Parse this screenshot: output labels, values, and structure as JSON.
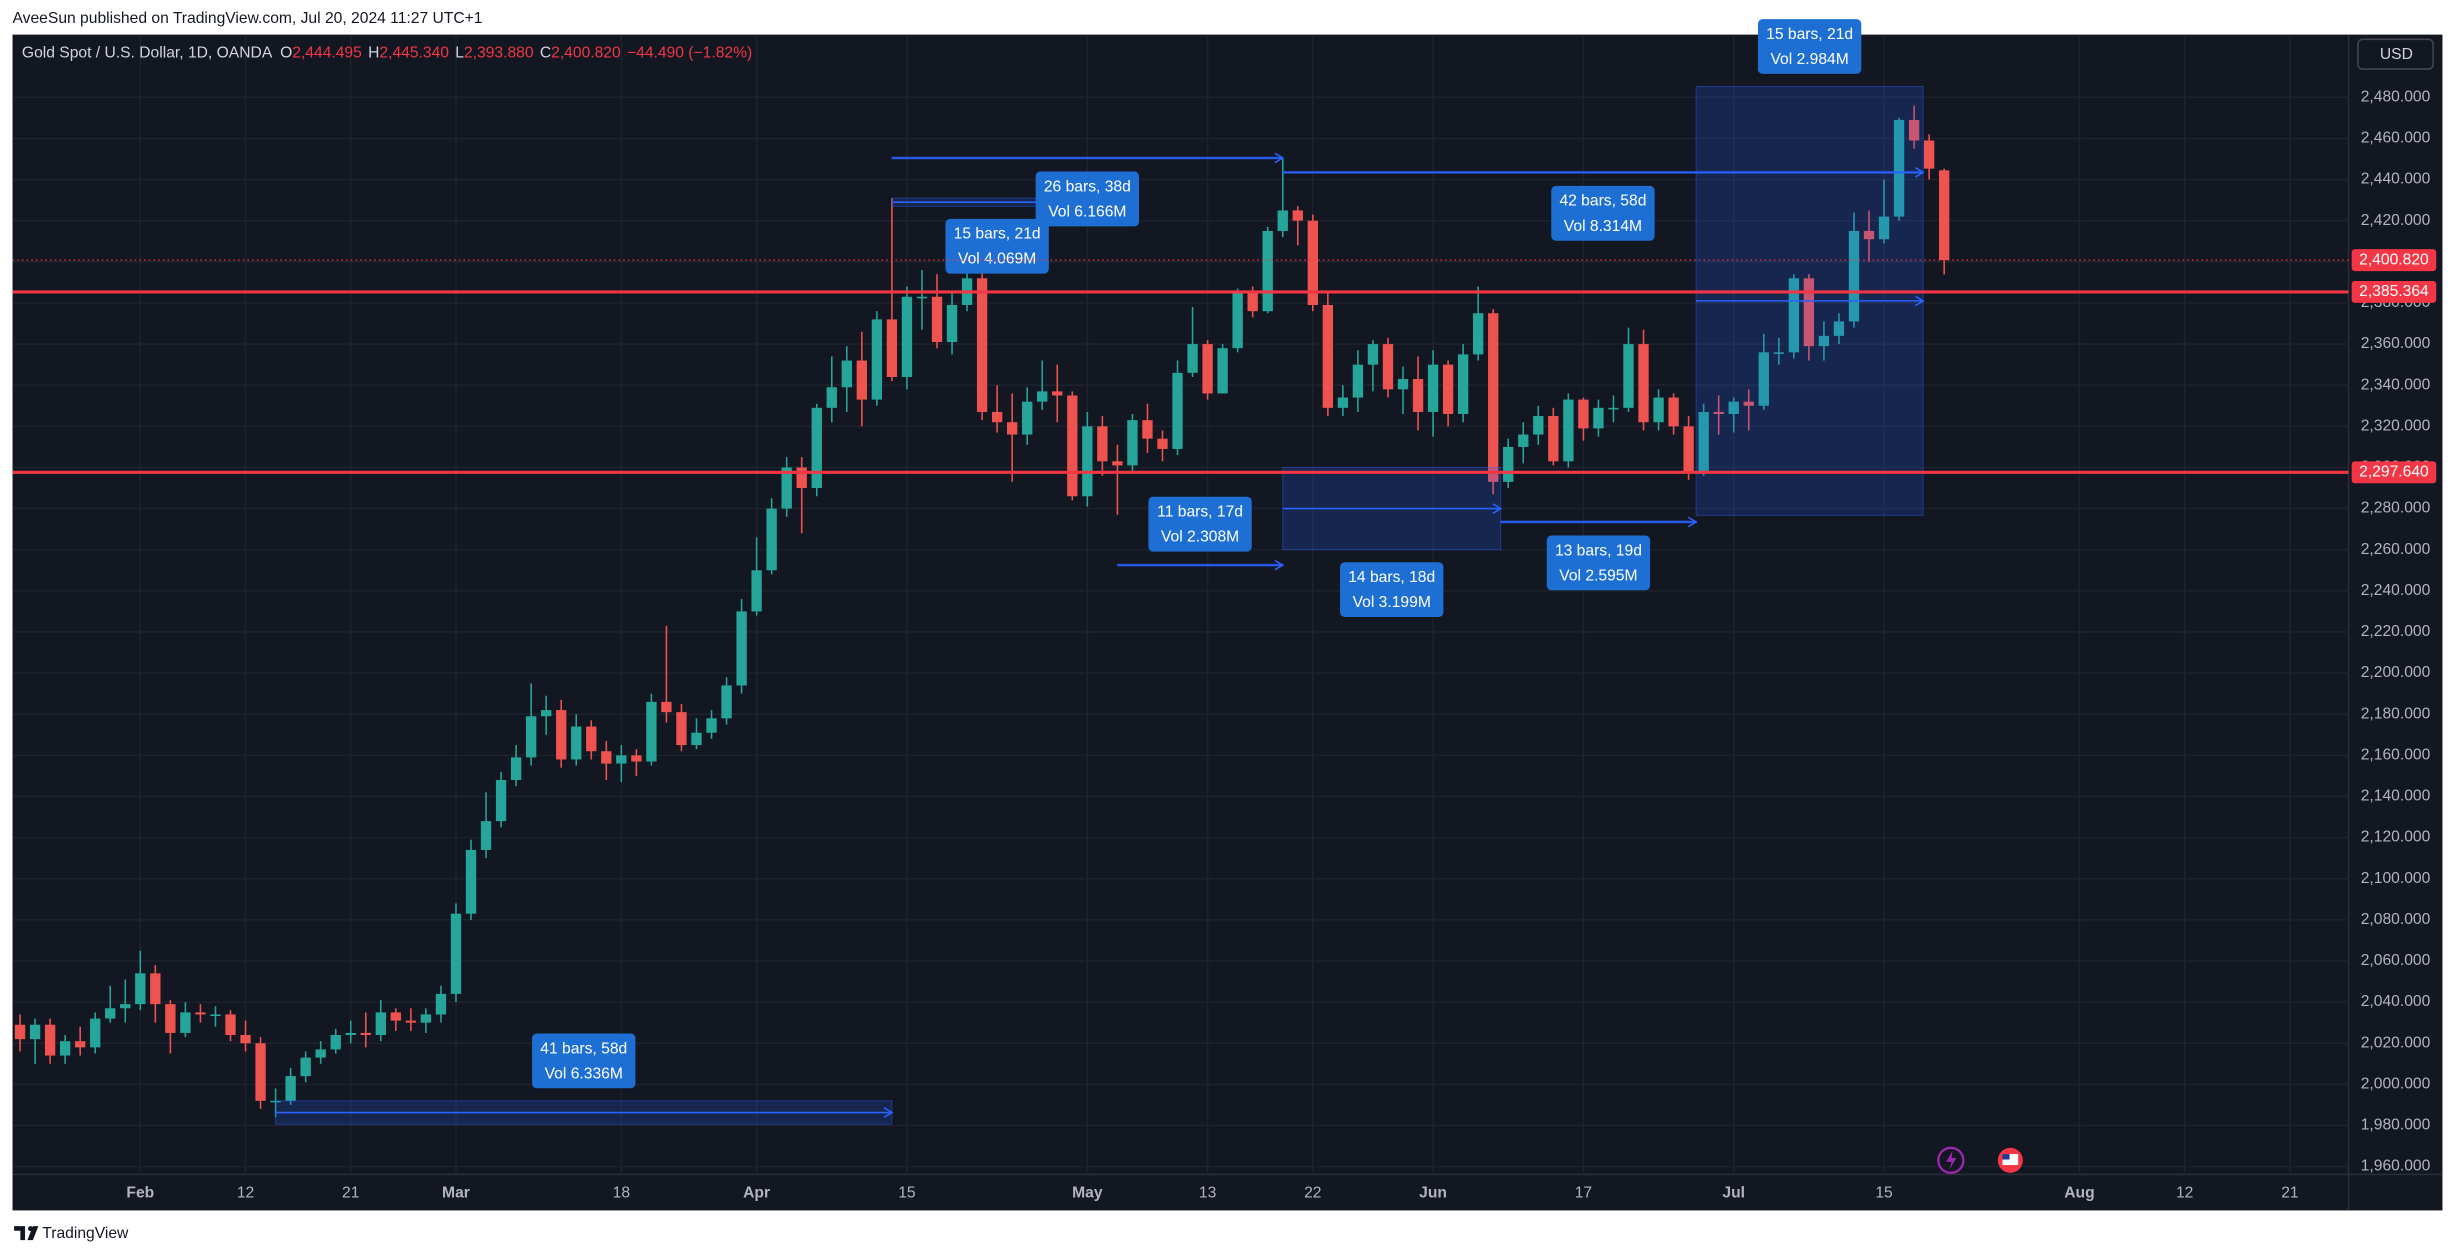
{
  "publisher": "AveeSun published on TradingView.com, Jul 20, 2024 11:27 UTC+1",
  "currency": "USD",
  "brand": "TradingView",
  "chart_data": {
    "type": "candlestick",
    "symbol": "Gold Spot / U.S. Dollar, 1D, OANDA",
    "legend": [
      {
        "key": "O",
        "value": "2,444.495"
      },
      {
        "key": "H",
        "value": "2,445.340"
      },
      {
        "key": "L",
        "value": "2,393.880"
      },
      {
        "key": "C",
        "value": "2,400.820"
      }
    ],
    "change": "−44.490 (−1.82%)",
    "colors": {
      "up": "#26a69a",
      "down": "#ef5350"
    },
    "grid": true,
    "xlim": [
      -0.5,
      154.9
    ],
    "ylim": [
      1956.2,
      2510.5
    ],
    "xticks": [
      {
        "value": 8,
        "label": "Feb"
      },
      {
        "value": 15,
        "label": "12"
      },
      {
        "value": 22,
        "label": "21"
      },
      {
        "value": 29,
        "label": "Mar"
      },
      {
        "value": 40,
        "label": "18"
      },
      {
        "value": 49,
        "label": "Apr"
      },
      {
        "value": 59,
        "label": "15"
      },
      {
        "value": 71,
        "label": "May"
      },
      {
        "value": 79,
        "label": "13"
      },
      {
        "value": 86,
        "label": "22"
      },
      {
        "value": 94,
        "label": "Jun"
      },
      {
        "value": 104,
        "label": "17"
      },
      {
        "value": 114,
        "label": "Jul"
      },
      {
        "value": 124,
        "label": "15"
      },
      {
        "value": 137,
        "label": "Aug"
      },
      {
        "value": 144,
        "label": "12"
      },
      {
        "value": 151,
        "label": "21"
      }
    ],
    "yticks": [
      {
        "value": 1960,
        "label": "1,960.000"
      },
      {
        "value": 1980,
        "label": "1,980.000"
      },
      {
        "value": 2000,
        "label": "2,000.000"
      },
      {
        "value": 2020,
        "label": "2,020.000"
      },
      {
        "value": 2040,
        "label": "2,040.000"
      },
      {
        "value": 2060,
        "label": "2,060.000"
      },
      {
        "value": 2080,
        "label": "2,080.000"
      },
      {
        "value": 2100,
        "label": "2,100.000"
      },
      {
        "value": 2120,
        "label": "2,120.000"
      },
      {
        "value": 2140,
        "label": "2,140.000"
      },
      {
        "value": 2160,
        "label": "2,160.000"
      },
      {
        "value": 2180,
        "label": "2,180.000"
      },
      {
        "value": 2200,
        "label": "2,200.000"
      },
      {
        "value": 2220,
        "label": "2,220.000"
      },
      {
        "value": 2240,
        "label": "2,240.000"
      },
      {
        "value": 2260,
        "label": "2,260.000"
      },
      {
        "value": 2280,
        "label": "2,280.000"
      },
      {
        "value": 2300,
        "label": "2,300.000"
      },
      {
        "value": 2320,
        "label": "2,320.000"
      },
      {
        "value": 2340,
        "label": "2,340.000"
      },
      {
        "value": 2360,
        "label": "2,360.000"
      },
      {
        "value": 2380,
        "label": "2,380.000"
      },
      {
        "value": 2400,
        "label": "2,400.000"
      },
      {
        "value": 2420,
        "label": "2,420.000"
      },
      {
        "value": 2440,
        "label": "2,440.000"
      },
      {
        "value": 2460,
        "label": "2,460.000"
      },
      {
        "value": 2480,
        "label": "2,480.000"
      }
    ],
    "x": [
      0,
      1,
      2,
      3,
      4,
      5,
      6,
      7,
      8,
      9,
      10,
      11,
      12,
      13,
      14,
      15,
      16,
      17,
      18,
      19,
      20,
      21,
      22,
      23,
      24,
      25,
      26,
      27,
      28,
      29,
      30,
      31,
      32,
      33,
      34,
      35,
      36,
      37,
      38,
      39,
      40,
      41,
      42,
      43,
      44,
      45,
      46,
      47,
      48,
      49,
      50,
      51,
      52,
      53,
      54,
      55,
      56,
      57,
      58,
      59,
      60,
      61,
      62,
      63,
      64,
      65,
      66,
      67,
      68,
      69,
      70,
      71,
      72,
      73,
      74,
      75,
      76,
      77,
      78,
      79,
      80,
      81,
      82,
      83,
      84,
      85,
      86,
      87,
      88,
      89,
      90,
      91,
      92,
      93,
      94,
      95,
      96,
      97,
      98,
      99,
      100,
      101,
      102,
      103,
      104,
      105,
      106,
      107,
      108,
      109,
      110,
      111,
      112,
      113,
      114,
      115,
      116,
      117,
      118,
      119,
      120,
      121,
      122,
      123,
      124,
      125,
      126,
      127,
      128
    ],
    "open": [
      2029,
      2022,
      2029,
      2014,
      2021,
      2018,
      2032,
      2037,
      2039,
      2054,
      2039,
      2025,
      2035,
      2034,
      2034,
      2024,
      2020,
      1992,
      1992,
      2004,
      2013,
      2017,
      2024,
      2025,
      2024,
      2035,
      2031,
      2030,
      2034,
      2044,
      2083,
      2114,
      2128,
      2148,
      2159,
      2179,
      2182,
      2158,
      2174,
      2162,
      2156,
      2160,
      2157,
      2186,
      2181,
      2165,
      2171,
      2178,
      2194,
      2230,
      2250,
      2280,
      2300,
      2290,
      2329,
      2339,
      2352,
      2333,
      2372,
      2344,
      2383,
      2383,
      2361,
      2379,
      2392,
      2327,
      2322,
      2316,
      2332,
      2337,
      2335,
      2286,
      2320,
      2303,
      2301,
      2323,
      2314,
      2309,
      2346,
      2360,
      2336,
      2358,
      2385,
      2376,
      2415,
      2425,
      2420,
      2379,
      2329,
      2334,
      2350,
      2360,
      2338,
      2343,
      2327,
      2350,
      2326,
      2355,
      2375,
      2293,
      2310,
      2316,
      2325,
      2303,
      2333,
      2319,
      2329,
      2329,
      2360,
      2322,
      2334,
      2320,
      2298,
      2327,
      2326,
      2332,
      2330,
      2356,
      2356,
      2392,
      2359,
      2364,
      2371,
      2415,
      2411,
      2422,
      2469,
      2459,
      2444.495
    ],
    "high": [
      2034,
      2032,
      2032,
      2024,
      2028,
      2035,
      2048,
      2051,
      2065,
      2058,
      2041,
      2040,
      2039,
      2038,
      2036,
      2031,
      2023,
      1998,
      2008,
      2016,
      2021,
      2027,
      2031,
      2035,
      2041,
      2037,
      2037,
      2037,
      2048,
      2088,
      2119,
      2142,
      2152,
      2165,
      2195,
      2189,
      2187,
      2180,
      2177,
      2167,
      2165,
      2163,
      2190,
      2223,
      2185,
      2178,
      2182,
      2198,
      2236,
      2266,
      2285,
      2305,
      2305,
      2331,
      2354,
      2359,
      2366,
      2376,
      2431,
      2388,
      2396,
      2394,
      2385,
      2418,
      2395,
      2340,
      2336,
      2339,
      2352,
      2350,
      2337,
      2327,
      2325,
      2311,
      2326,
      2331,
      2318,
      2352,
      2378,
      2362,
      2360,
      2387,
      2388,
      2417,
      2450,
      2427,
      2423,
      2385,
      2340,
      2357,
      2362,
      2363,
      2349,
      2354,
      2357,
      2352,
      2360,
      2388,
      2377,
      2314,
      2322,
      2330,
      2329,
      2336,
      2334,
      2333,
      2335,
      2368,
      2367,
      2338,
      2336,
      2325,
      2331,
      2335,
      2334,
      2338,
      2365,
      2363,
      2394,
      2394,
      2371,
      2375,
      2424,
      2425,
      2440,
      2470,
      2476,
      2462,
      2445.34
    ],
    "low": [
      2016,
      2010,
      2010,
      2010,
      2014,
      2015,
      2030,
      2030,
      2036,
      2030,
      2015,
      2023,
      2030,
      2028,
      2021,
      2016,
      1988,
      1984,
      1990,
      2001,
      2010,
      2015,
      2020,
      2018,
      2021,
      2026,
      2026,
      2025,
      2030,
      2040,
      2080,
      2110,
      2125,
      2145,
      2155,
      2170,
      2154,
      2155,
      2158,
      2148,
      2147,
      2150,
      2155,
      2176,
      2162,
      2163,
      2168,
      2175,
      2190,
      2228,
      2248,
      2276,
      2268,
      2286,
      2322,
      2327,
      2320,
      2330,
      2342,
      2338,
      2367,
      2358,
      2355,
      2376,
      2323,
      2317,
      2293,
      2311,
      2328,
      2322,
      2284,
      2281,
      2296,
      2277,
      2298,
      2307,
      2303,
      2306,
      2344,
      2333,
      2336,
      2356,
      2373,
      2375,
      2412,
      2408,
      2376,
      2325,
      2325,
      2327,
      2337,
      2334,
      2326,
      2318,
      2315,
      2320,
      2322,
      2352,
      2287,
      2290,
      2302,
      2311,
      2301,
      2300,
      2313,
      2315,
      2322,
      2327,
      2318,
      2318,
      2316,
      2294,
      2296,
      2316,
      2317,
      2318,
      2328,
      2350,
      2353,
      2352,
      2352,
      2360,
      2368,
      2400,
      2409,
      2420,
      2455,
      2440,
      2393.88
    ],
    "close": [
      2022,
      2029,
      2014,
      2021,
      2018,
      2032,
      2037,
      2039,
      2054,
      2039,
      2025,
      2035,
      2034,
      2034,
      2024,
      2020,
      1992,
      1992,
      2004,
      2013,
      2017,
      2024,
      2025,
      2024,
      2035,
      2031,
      2030,
      2034,
      2044,
      2083,
      2114,
      2128,
      2148,
      2159,
      2179,
      2182,
      2158,
      2174,
      2162,
      2156,
      2160,
      2157,
      2186,
      2181,
      2165,
      2171,
      2178,
      2194,
      2230,
      2250,
      2280,
      2300,
      2290,
      2329,
      2339,
      2352,
      2333,
      2372,
      2344,
      2383,
      2383,
      2361,
      2379,
      2392,
      2327,
      2322,
      2316,
      2332,
      2337,
      2335,
      2286,
      2320,
      2303,
      2301,
      2323,
      2314,
      2309,
      2346,
      2360,
      2336,
      2358,
      2385,
      2376,
      2415,
      2425,
      2420,
      2379,
      2329,
      2334,
      2350,
      2360,
      2338,
      2343,
      2327,
      2350,
      2326,
      2355,
      2375,
      2293,
      2310,
      2316,
      2325,
      2303,
      2333,
      2319,
      2329,
      2329,
      2360,
      2322,
      2334,
      2320,
      2298,
      2327,
      2326,
      2332,
      2330,
      2356,
      2356,
      2392,
      2359,
      2364,
      2371,
      2415,
      2411,
      2422,
      2469,
      2459,
      2445.31,
      2400.82
    ],
    "hlines": [
      {
        "value": 2385.364,
        "label": "2,385.364",
        "color": "#f23645"
      },
      {
        "value": 2297.64,
        "label": "2,297.640",
        "color": "#f23645"
      }
    ],
    "last_price": {
      "value": 2400.82,
      "label": "2,400.820",
      "color": "#f23645"
    },
    "measures": [
      {
        "bars": "41 bars, 58d",
        "vol": "Vol 6.336M",
        "x": [
          17,
          58
        ],
        "y": [
          1980.6,
          1992
        ]
      },
      {
        "bars": "15 bars, 21d",
        "vol": "Vol 4.069M",
        "x": [
          58,
          72
        ],
        "y": [
          2431,
          2427
        ]
      },
      {
        "bars": "26 bars, 38d",
        "vol": "Vol 6.166M",
        "x": [
          58,
          84
        ],
        "y": [
          2451,
          2450
        ]
      },
      {
        "bars": "42 bars, 58d",
        "vol": "Vol 8.314M",
        "x": [
          84,
          126.6
        ],
        "y": [
          2444,
          2443
        ]
      },
      {
        "bars": "11 bars, 17d",
        "vol": "Vol 2.308M",
        "x": [
          73,
          84
        ],
        "y": [
          2252,
          2253
        ]
      },
      {
        "bars": "14 bars, 18d",
        "vol": "Vol 3.199M",
        "x": [
          84,
          98.5
        ],
        "y": [
          2300,
          2260
        ]
      },
      {
        "bars": "13 bars, 19d",
        "vol": "Vol 2.595M",
        "x": [
          98.5,
          111.5
        ],
        "y": [
          2274,
          2273
        ]
      },
      {
        "bars": "15 bars, 21d",
        "vol": "Vol 2.984M",
        "x": [
          111.5,
          126.6
        ],
        "y": [
          2276.7,
          2485.3
        ]
      }
    ]
  }
}
